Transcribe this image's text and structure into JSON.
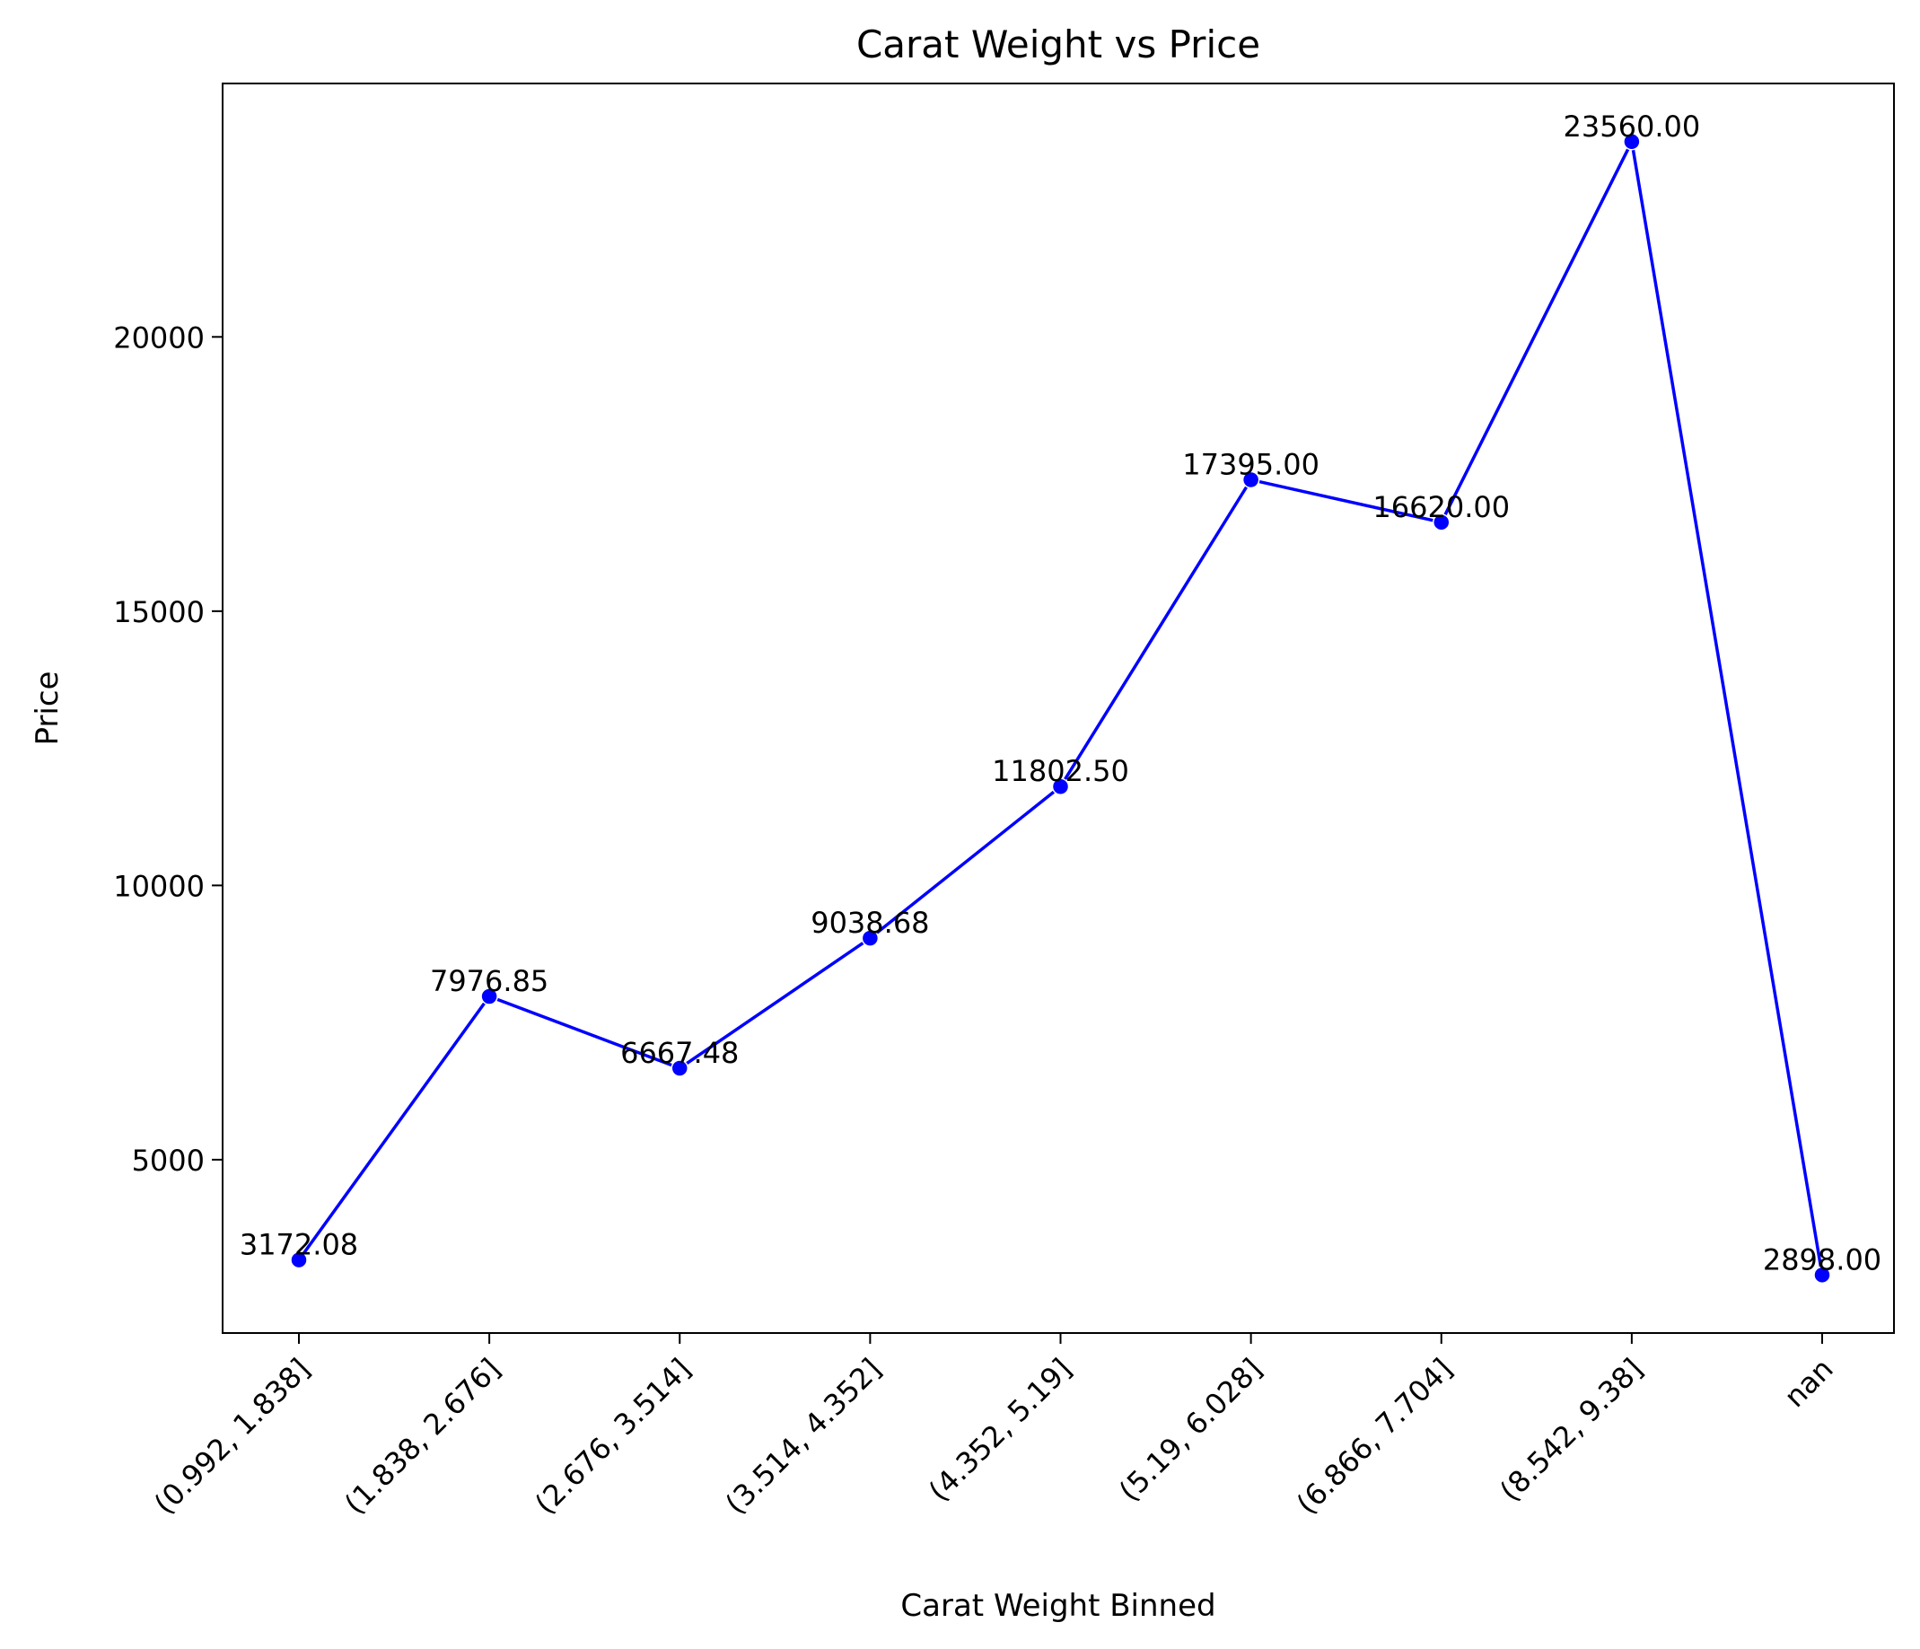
{
  "chart_data": {
    "type": "line",
    "title": "Carat Weight vs Price",
    "xlabel": "Carat Weight Binned",
    "ylabel": "Price",
    "categories": [
      "(0.992, 1.838]",
      "(1.838, 2.676]",
      "(2.676, 3.514]",
      "(3.514, 4.352]",
      "(4.352, 5.19]",
      "(5.19, 6.028]",
      "(6.866, 7.704]",
      "(8.542, 9.38]",
      "nan"
    ],
    "values": [
      3172.08,
      7976.85,
      6667.48,
      9038.68,
      11802.5,
      17395.0,
      16620.0,
      23560.0,
      2898.0
    ],
    "data_labels": [
      "3172.08",
      "7976.85",
      "6667.48",
      "9038.68",
      "11802.50",
      "17395.00",
      "16620.00",
      "23560.00",
      "2898.00"
    ],
    "ylim": [
      1840,
      24620
    ],
    "yticks": [
      5000,
      10000,
      15000,
      20000
    ],
    "ytick_labels": [
      "5000",
      "10000",
      "15000",
      "20000"
    ],
    "line_color": "#0000ff",
    "marker": "circle",
    "grid": false,
    "legend": "none"
  }
}
